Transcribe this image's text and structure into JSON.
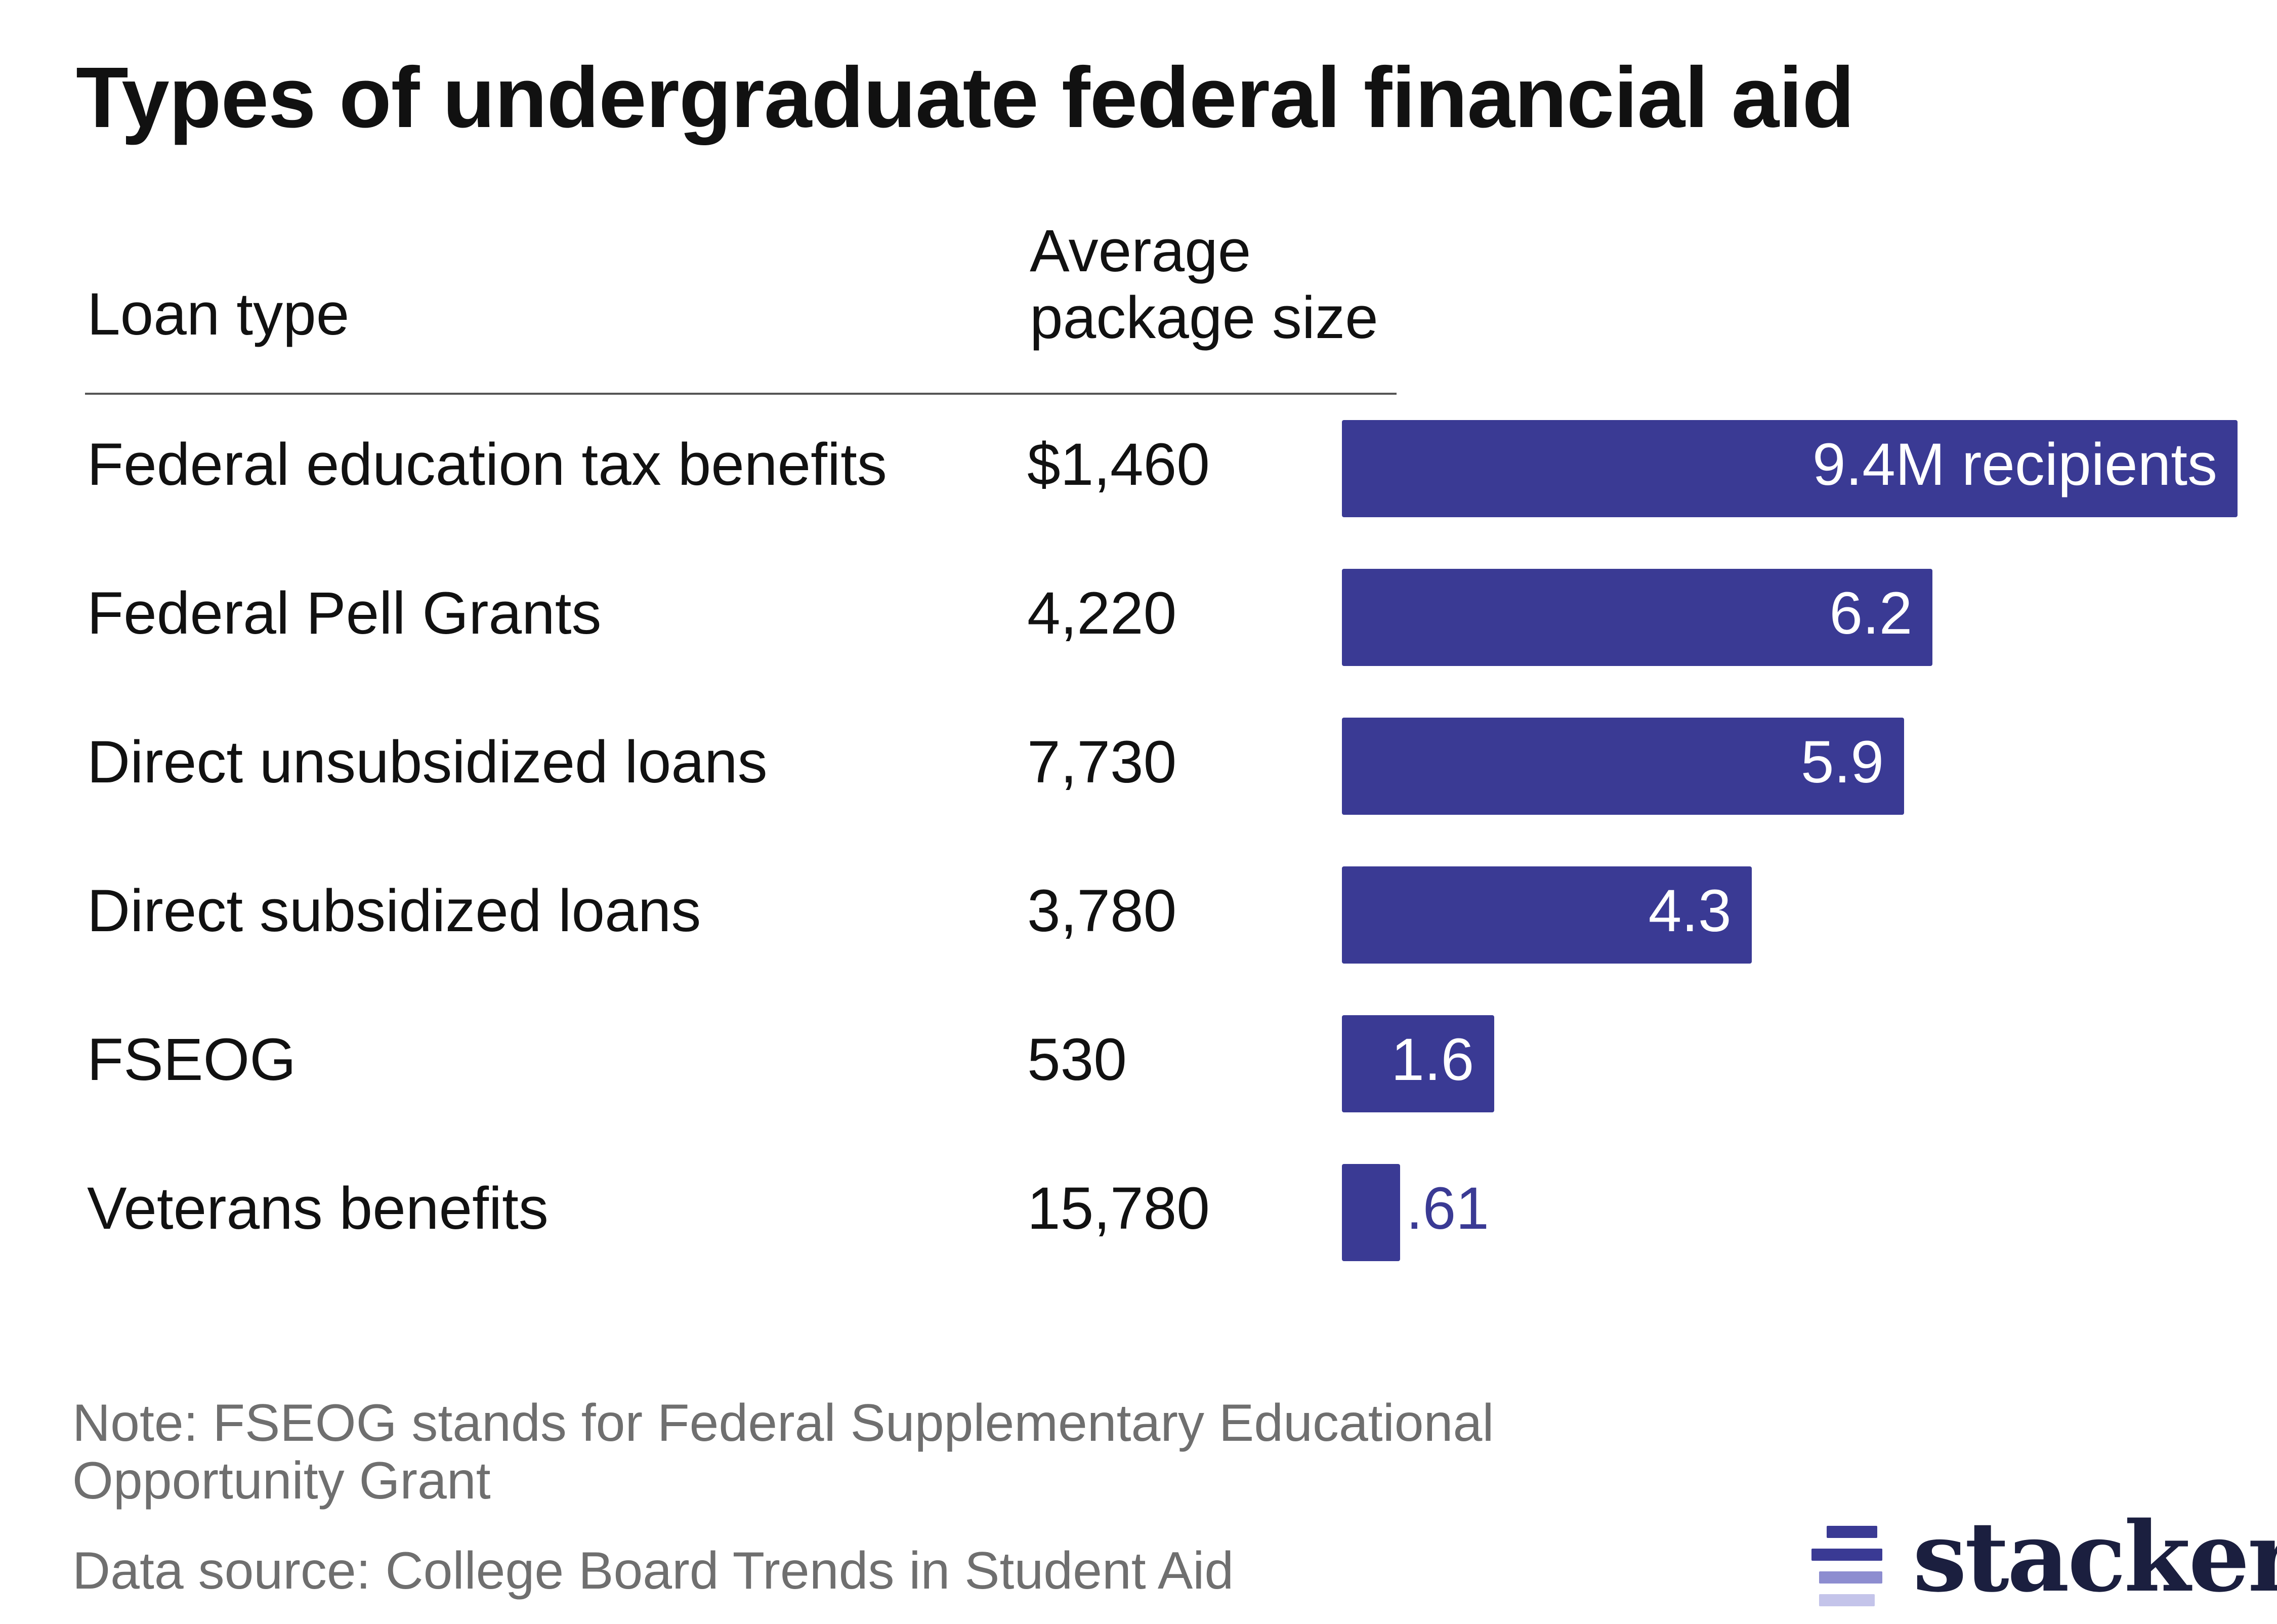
{
  "title": "Types of undergraduate federal financial aid",
  "columns": {
    "loan_type": "Loan type",
    "avg_package_line1": "Average",
    "avg_package_line2": "package size"
  },
  "colors": {
    "bar": "#3a3a94",
    "outside_label": "#3a3a94"
  },
  "chart_data": {
    "type": "bar",
    "orientation": "horizontal",
    "title": "Types of undergraduate federal financial aid",
    "categories": [
      "Federal education tax benefits",
      "Federal Pell Grants",
      "Direct unsubsidized loans",
      "Direct subsidized loans",
      "FSEOG",
      "Veterans benefits"
    ],
    "average_package": [
      "$1,460",
      "4,220",
      "7,730",
      "3,780",
      "530",
      "15,780"
    ],
    "series": [
      {
        "values": [
          9.4,
          6.2,
          5.9,
          4.3,
          1.6,
          0.61
        ]
      }
    ],
    "value_labels": [
      "9.4M recipients",
      "6.2",
      "5.9",
      "4.3",
      "1.6",
      ".61"
    ],
    "unit": "million recipients",
    "xlim": [
      0,
      9.4
    ],
    "grid": false,
    "legend": "none"
  },
  "note": "Note: FSEOG stands for Federal Supplementary Educational Opportunity Grant",
  "source": "Data source: College Board Trends in Student Aid",
  "logo": {
    "text": "stacker",
    "mark_colors": [
      "#3a3a94",
      "#3a3a94",
      "#8d8dd0",
      "#c4c4ea"
    ]
  }
}
